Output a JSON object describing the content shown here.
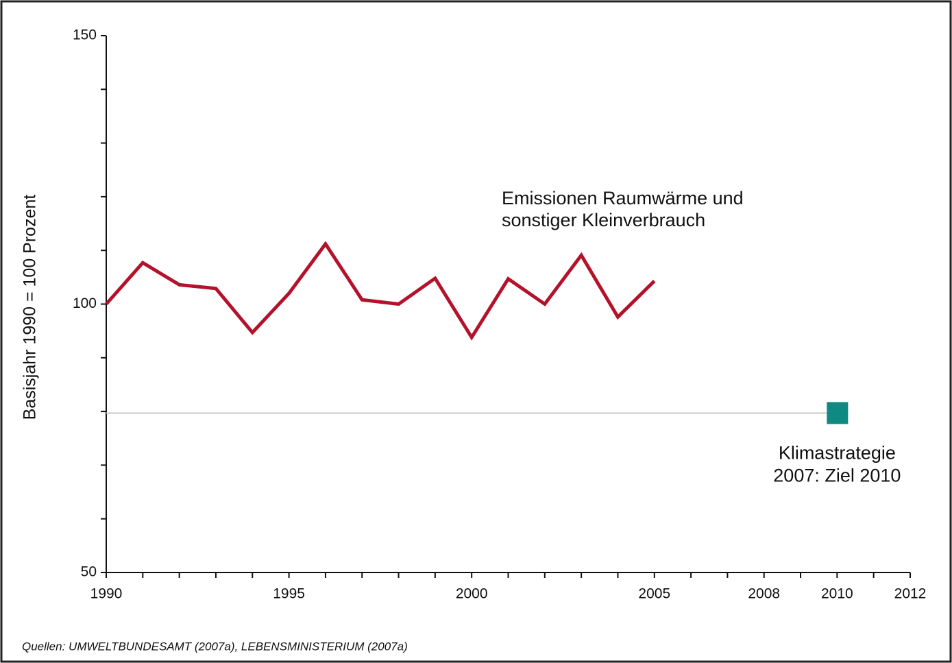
{
  "chart_data": {
    "type": "line",
    "y_label": "Basisjahr 1990 = 100 Prozent",
    "x": [
      1990,
      1991,
      1992,
      1993,
      1994,
      1995,
      1996,
      1997,
      1998,
      1999,
      2000,
      2001,
      2002,
      2003,
      2004,
      2005
    ],
    "series": [
      {
        "name": [
          "Emissionen Raumwärme und",
          "sonstiger Kleinverbrauch"
        ],
        "color": "#b3122b",
        "values": [
          100,
          107.7,
          103.6,
          102.9,
          94.7,
          102,
          111.2,
          100.8,
          100,
          104.8,
          93.8,
          104.7,
          100,
          109.1,
          97.6,
          104.3
        ]
      }
    ],
    "target": {
      "name": [
        "Klimastrategie",
        "2007: Ziel 2010"
      ],
      "x": 2010,
      "value": 79.7,
      "color": "#0e8a82",
      "line_color": "#c8c8c8"
    },
    "xlim": [
      1990,
      2012
    ],
    "xticks": [
      1990,
      1995,
      2000,
      2005,
      2008,
      2010,
      2012
    ],
    "xminor_ticks": [
      1991,
      1992,
      1993,
      1994,
      1996,
      1997,
      1998,
      1999,
      2001,
      2002,
      2003,
      2004,
      2006,
      2007,
      2009,
      2011
    ],
    "ylim": [
      50,
      150
    ],
    "yticks": [
      50,
      100,
      150
    ],
    "yminor_ticks": [
      60,
      70,
      80,
      90,
      110,
      120,
      130,
      140
    ],
    "source": "Quellen: UMWELTBUNDESAMT (2007a), LEBENSMINISTERIUM (2007a)"
  }
}
